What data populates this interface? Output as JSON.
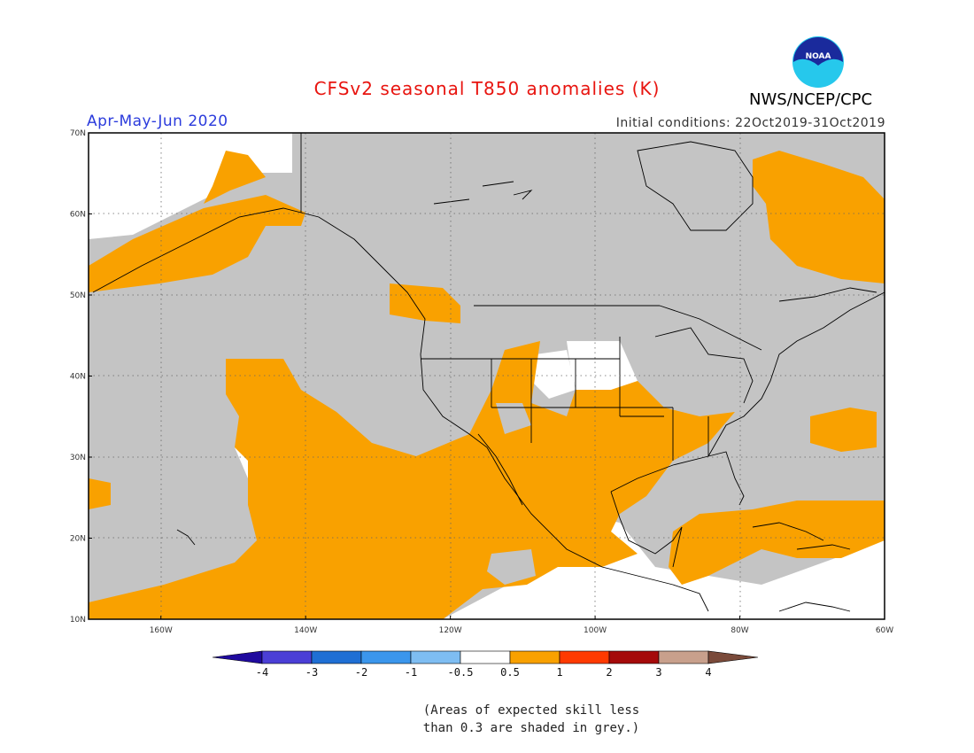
{
  "title": "CFSv2 seasonal T850 anomalies (K)",
  "season": "Apr-May-Jun 2020",
  "initial_conditions": "Initial conditions: 22Oct2019-31Oct2019",
  "agency": "NWS/NCEP/CPC",
  "logo_text": "NOAA",
  "map": {
    "lat_labels": [
      "70N",
      "60N",
      "50N",
      "40N",
      "30N",
      "20N",
      "10N"
    ],
    "lon_labels": [
      "160W",
      "140W",
      "120W",
      "100W",
      "80W",
      "60W"
    ],
    "lat_range": [
      10,
      70
    ],
    "lon_range": [
      -170,
      -60
    ],
    "colors": {
      "grey": "#c4c4c4",
      "orange": "#f9a100",
      "white": "#ffffff"
    }
  },
  "colorbar": {
    "labels": [
      "-4",
      "-3",
      "-2",
      "-1",
      "-0.5",
      "0.5",
      "1",
      "2",
      "3",
      "4"
    ],
    "colors": [
      "#1f0a9e",
      "#4b3fd6",
      "#1f6fd4",
      "#3b96ec",
      "#7ebdf2",
      "#ffffff",
      "#f9a100",
      "#ff3a00",
      "#a50a0a",
      "#c8a08c",
      "#7a4a3a"
    ]
  },
  "note": [
    "(Areas of expected skill less",
    "than 0.3 are shaded in grey.)"
  ]
}
